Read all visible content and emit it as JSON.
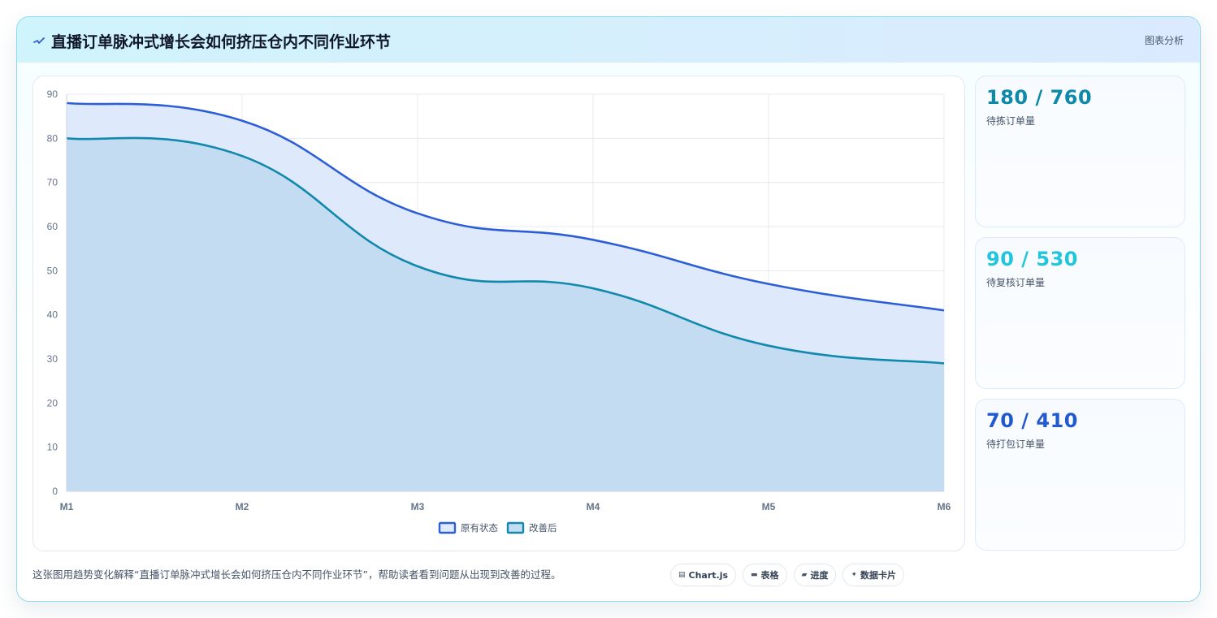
{
  "header": {
    "title": "直播订单脉冲式增长会如何挤压仓内不同作业环节",
    "tag": "图表分析"
  },
  "chart_data": {
    "type": "area",
    "categories": [
      "M1",
      "M2",
      "M3",
      "M4",
      "M5",
      "M6"
    ],
    "y_ticks": [
      "0",
      "10",
      "20",
      "30",
      "40",
      "50",
      "60",
      "70",
      "80",
      "90"
    ],
    "ylim": [
      0,
      90
    ],
    "grid": true,
    "legend_position": "bottom",
    "series": [
      {
        "name": "原有状态",
        "values": [
          88,
          84,
          63,
          57,
          47,
          41
        ],
        "color": "#2c5fd6",
        "fill": "#dfe9fc"
      },
      {
        "name": "改善后",
        "values": [
          80,
          76,
          51,
          46,
          33,
          29
        ],
        "color": "#1089ad",
        "fill": "#c4dcf2"
      }
    ]
  },
  "stats": [
    {
      "value": "180 / 760",
      "label": "待拣订单量",
      "color": "#0e8aa8"
    },
    {
      "value": "90 / 530",
      "label": "待复核订单量",
      "color": "#22c5de"
    },
    {
      "value": "70 / 410",
      "label": "待打包订单量",
      "color": "#2359cf"
    }
  ],
  "caption": "这张图用趋势变化解释“直播订单脉冲式增长会如何挤压仓内不同作业环节”，帮助读者看到问题从出现到改善的过程。",
  "pills": [
    {
      "glyph": "▤",
      "label": "Chart.js"
    },
    {
      "glyph": "▬",
      "label": "表格"
    },
    {
      "glyph": "▰",
      "label": "进度"
    },
    {
      "glyph": "✦",
      "label": "数据卡片"
    }
  ]
}
